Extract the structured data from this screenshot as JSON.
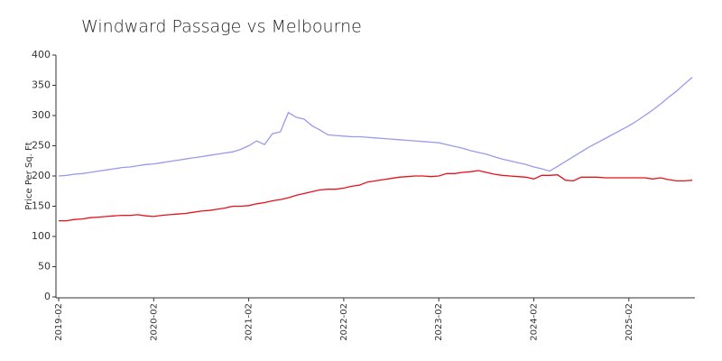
{
  "chart_data": {
    "type": "line",
    "title": "Windward Passage vs Melbourne",
    "ylabel": "Price Per Sq. Ft",
    "x": [
      "2019-02",
      "2019-03",
      "2019-04",
      "2019-05",
      "2019-06",
      "2019-07",
      "2019-08",
      "2019-09",
      "2019-10",
      "2019-11",
      "2019-12",
      "2020-01",
      "2020-02",
      "2020-03",
      "2020-04",
      "2020-05",
      "2020-06",
      "2020-07",
      "2020-08",
      "2020-09",
      "2020-10",
      "2020-11",
      "2020-12",
      "2021-01",
      "2021-02",
      "2021-03",
      "2021-04",
      "2021-05",
      "2021-06",
      "2021-07",
      "2021-08",
      "2021-09",
      "2021-10",
      "2021-11",
      "2021-12",
      "2022-01",
      "2022-02",
      "2022-03",
      "2022-04",
      "2022-05",
      "2022-06",
      "2022-07",
      "2022-08",
      "2022-09",
      "2022-10",
      "2022-11",
      "2022-12",
      "2023-01",
      "2023-02",
      "2023-03",
      "2023-04",
      "2023-05",
      "2023-06",
      "2023-07",
      "2023-08",
      "2023-09",
      "2023-10",
      "2023-11",
      "2023-12",
      "2024-01",
      "2024-02",
      "2024-03",
      "2024-04",
      "2024-05",
      "2024-06",
      "2024-07",
      "2024-08",
      "2024-09",
      "2024-10",
      "2024-11",
      "2024-12",
      "2025-01",
      "2025-02",
      "2025-03",
      "2025-04",
      "2025-05",
      "2025-06",
      "2025-07",
      "2025-08",
      "2025-09",
      "2025-10"
    ],
    "series": [
      {
        "color": "#9999ee",
        "values": [
          200,
          201,
          203,
          204,
          206,
          208,
          210,
          212,
          214,
          215,
          217,
          219,
          220,
          222,
          224,
          226,
          228,
          230,
          232,
          234,
          236,
          238,
          240,
          244,
          250,
          258,
          252,
          270,
          273,
          305,
          297,
          294,
          283,
          276,
          268,
          267,
          266,
          265,
          265,
          264,
          263,
          262,
          261,
          260,
          259,
          258,
          257,
          256,
          255,
          252,
          249,
          246,
          242,
          239,
          236,
          232,
          228,
          225,
          222,
          219,
          215,
          212,
          208,
          216,
          224,
          232,
          240,
          248,
          255,
          262,
          269,
          276,
          283,
          291,
          300,
          309,
          319,
          330,
          340,
          352,
          363
        ]
      },
      {
        "color": "#e8101a",
        "values": [
          126,
          126,
          128,
          129,
          131,
          132,
          133,
          134,
          135,
          135,
          136,
          134,
          133,
          135,
          136,
          137,
          138,
          140,
          142,
          143,
          145,
          147,
          150,
          150,
          151,
          154,
          156,
          159,
          161,
          164,
          168,
          171,
          174,
          177,
          178,
          178,
          180,
          183,
          185,
          190,
          192,
          194,
          196,
          198,
          199,
          200,
          200,
          199,
          200,
          204,
          204,
          206,
          207,
          209,
          206,
          203,
          201,
          200,
          199,
          198,
          195,
          201,
          201,
          202,
          193,
          192,
          198,
          198,
          198,
          197,
          197,
          197,
          197,
          197,
          197,
          195,
          197,
          194,
          192,
          192,
          193
        ]
      }
    ],
    "xticks": [
      "2019-02",
      "2020-02",
      "2021-02",
      "2022-02",
      "2023-02",
      "2024-02",
      "2025-02"
    ],
    "ylim": [
      0,
      400
    ],
    "yticks": [
      0,
      50,
      100,
      150,
      200,
      250,
      300,
      350,
      400
    ]
  }
}
